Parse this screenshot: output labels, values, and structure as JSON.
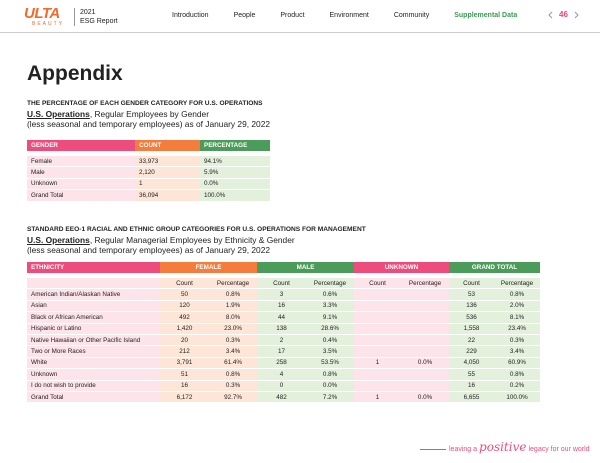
{
  "header": {
    "logo": "ULTA",
    "logo_sub": "BEAUTY",
    "year": "2021",
    "report": "ESG Report",
    "nav": [
      "Introduction",
      "People",
      "Product",
      "Environment",
      "Community",
      "Supplemental Data"
    ],
    "page": "46"
  },
  "title": "Appendix",
  "gender_section": {
    "heading": "THE PERCENTAGE OF EACH GENDER CATEGORY FOR U.S. OPERATIONS",
    "subtitle_link": "U.S. Operations",
    "subtitle": ", Regular Employees by Gender",
    "note": "(less seasonal and temporary employees) as of January 29, 2022",
    "table": {
      "columns": [
        "GENDER",
        "COUNT",
        "PERCENTAGE"
      ],
      "rows": [
        [
          "Female",
          "33,973",
          "94.1%"
        ],
        [
          "Male",
          "2,120",
          "5.9%"
        ],
        [
          "Unknown",
          "1",
          "0.0%"
        ],
        [
          "Grand Total",
          "36,094",
          "100.0%"
        ]
      ]
    }
  },
  "ethnicity_section": {
    "heading": "STANDARD EEO-1 RACIAL AND ETHNIC GROUP CATEGORIES FOR U.S. OPERATIONS FOR MANAGEMENT",
    "subtitle_link": "U.S. Operations",
    "subtitle": ", Regular Managerial Employees by Ethnicity & Gender",
    "note": "(less seasonal and temporary employees) as of January 29, 2022",
    "table": {
      "groups": [
        "ETHNICITY",
        "FEMALE",
        "MALE",
        "UNKNOWN",
        "GRAND TOTAL"
      ],
      "subcolumns": [
        "Count",
        "Percentage",
        "Count",
        "Percentage",
        "Count",
        "Percentage",
        "Count",
        "Percentage"
      ],
      "rows": [
        [
          "American Indian/Alaskan Native",
          "50",
          "0.8%",
          "3",
          "0.6%",
          null,
          null,
          "53",
          "0.8%"
        ],
        [
          "Asian",
          "120",
          "1.9%",
          "16",
          "3.3%",
          null,
          null,
          "136",
          "2.0%"
        ],
        [
          "Black or African American",
          "492",
          "8.0%",
          "44",
          "9.1%",
          null,
          null,
          "536",
          "8.1%"
        ],
        [
          "Hispanic or Latino",
          "1,420",
          "23.0%",
          "138",
          "28.6%",
          null,
          null,
          "1,558",
          "23.4%"
        ],
        [
          "Native Hawaiian or Other Pacific Island",
          "20",
          "0.3%",
          "2",
          "0.4%",
          null,
          null,
          "22",
          "0.3%"
        ],
        [
          "Two or More Races",
          "212",
          "3.4%",
          "17",
          "3.5%",
          null,
          null,
          "229",
          "3.4%"
        ],
        [
          "White",
          "3,791",
          "61.4%",
          "258",
          "53.5%",
          "1",
          "0.0%",
          "4,050",
          "60.9%"
        ],
        [
          "Unknown",
          "51",
          "0.8%",
          "4",
          "0.8%",
          null,
          null,
          "55",
          "0.8%"
        ],
        [
          "I do not wish to provide",
          "16",
          "0.3%",
          "0",
          "0.0%",
          null,
          null,
          "16",
          "0.2%"
        ],
        [
          "Grand Total",
          "6,172",
          "92.7%",
          "482",
          "7.2%",
          "1",
          "0.0%",
          "6,655",
          "100.0%"
        ]
      ]
    }
  },
  "footer": {
    "lead": "leaving a",
    "script": "positive",
    "tail": "legacy for our world"
  }
}
